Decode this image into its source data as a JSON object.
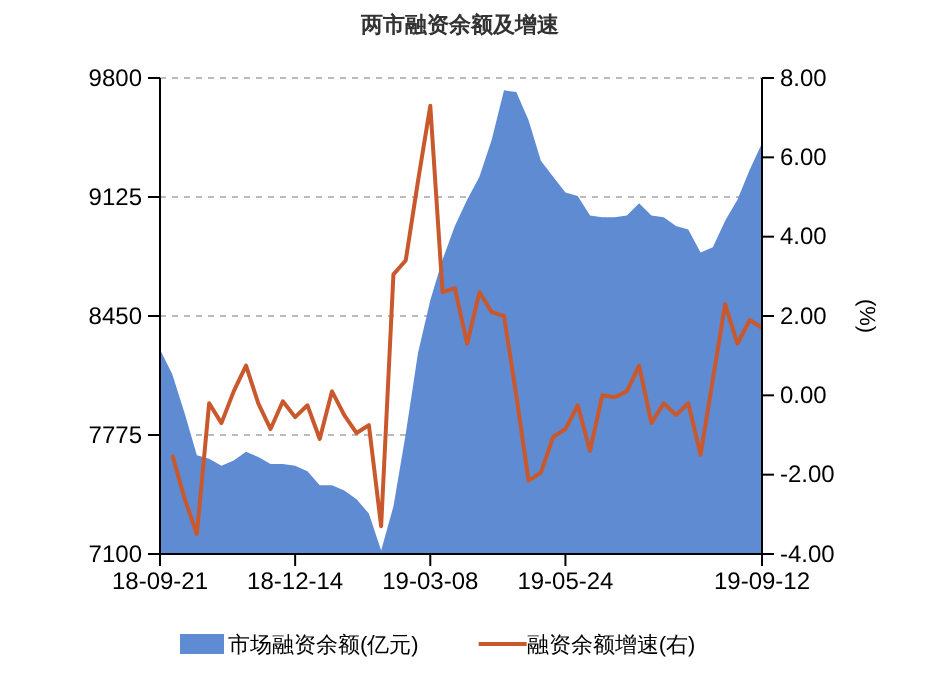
{
  "chart_data": {
    "type": "area",
    "title": "两市融资余额及增速",
    "y2label": "(%)",
    "categories": [
      "18-09-21",
      null,
      null,
      null,
      null,
      null,
      null,
      null,
      null,
      null,
      null,
      "18-12-14",
      null,
      null,
      null,
      null,
      null,
      null,
      null,
      null,
      null,
      null,
      "19-03-08",
      null,
      null,
      null,
      null,
      null,
      null,
      null,
      null,
      null,
      null,
      "19-05-24",
      null,
      null,
      null,
      null,
      null,
      null,
      null,
      null,
      null,
      null,
      null,
      null,
      null,
      null,
      null,
      "19-09-12"
    ],
    "series": [
      {
        "name": "市场融资余额(亿元)",
        "color": "#5f8bd3",
        "values": [
          8260,
          8120,
          7900,
          7660,
          7640,
          7600,
          7630,
          7680,
          7650,
          7610,
          7610,
          7600,
          7570,
          7490,
          7490,
          7460,
          7410,
          7330,
          7120,
          7370,
          7780,
          8240,
          8540,
          8770,
          8960,
          9110,
          9240,
          9450,
          9730,
          9720,
          9560,
          9330,
          9240,
          9150,
          9130,
          9020,
          9010,
          9010,
          9020,
          9090,
          9020,
          9010,
          8960,
          8940,
          8810,
          8840,
          8990,
          9110,
          9280,
          9430
        ]
      },
      {
        "name": "融资余额增速(右)",
        "type": "line",
        "axis": "y2",
        "color": "#c9592c",
        "values": [
          null,
          -1.5,
          -2.6,
          -3.5,
          -0.2,
          -0.7,
          0.1,
          0.75,
          -0.2,
          -0.85,
          -0.15,
          -0.55,
          -0.25,
          -1.1,
          0.1,
          -0.5,
          -0.95,
          -0.75,
          -3.3,
          3.05,
          3.4,
          5.4,
          7.3,
          2.6,
          2.7,
          1.3,
          2.6,
          2.1,
          2.0,
          0.0,
          -2.15,
          -1.95,
          -1.05,
          -0.85,
          -0.25,
          -1.4,
          0.0,
          -0.05,
          0.1,
          0.75,
          -0.7,
          -0.2,
          -0.5,
          -0.2,
          -1.5,
          0.4,
          2.3,
          1.3,
          1.9,
          1.7
        ]
      }
    ],
    "ylim": [
      7100,
      9800
    ],
    "yticks": [
      7100,
      7775,
      8450,
      9125,
      9800
    ],
    "y2lim": [
      -4,
      8
    ],
    "y2ticks": [
      {
        "value": -4,
        "label": "-4.00"
      },
      {
        "value": -2,
        "label": "-2.00"
      },
      {
        "value": 0,
        "label": "0.00"
      },
      {
        "value": 2,
        "label": "2.00"
      },
      {
        "value": 4,
        "label": "4.00"
      },
      {
        "value": 6,
        "label": "6.00"
      },
      {
        "value": 8,
        "label": "8.00"
      }
    ],
    "grid": "y",
    "legend": "bottom"
  }
}
